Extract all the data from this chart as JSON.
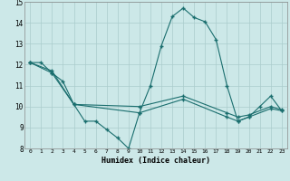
{
  "xlabel": "Humidex (Indice chaleur)",
  "background_color": "#cce8e8",
  "grid_color": "#aacccc",
  "line_color": "#1a6e6e",
  "xlim": [
    -0.5,
    23.5
  ],
  "ylim": [
    8,
    15
  ],
  "xticks": [
    0,
    1,
    2,
    3,
    4,
    5,
    6,
    7,
    8,
    9,
    10,
    11,
    12,
    13,
    14,
    15,
    16,
    17,
    18,
    19,
    20,
    21,
    22,
    23
  ],
  "yticks": [
    8,
    9,
    10,
    11,
    12,
    13,
    14,
    15
  ],
  "line1_x": [
    0,
    1,
    2,
    3,
    4,
    5,
    6,
    7,
    8,
    9,
    10,
    11,
    12,
    13,
    14,
    15,
    16,
    17,
    18,
    19,
    20,
    21,
    22,
    23
  ],
  "line1_y": [
    12.1,
    12.1,
    11.6,
    11.2,
    10.1,
    9.3,
    9.3,
    8.9,
    8.5,
    8.0,
    9.7,
    11.0,
    12.9,
    14.3,
    14.7,
    14.25,
    14.05,
    13.2,
    11.0,
    9.3,
    9.5,
    10.0,
    10.5,
    9.8
  ],
  "line2_x": [
    0,
    2,
    4,
    10,
    14,
    18,
    19,
    20,
    22,
    23
  ],
  "line2_y": [
    12.1,
    11.6,
    10.1,
    9.7,
    10.35,
    9.5,
    9.3,
    9.5,
    9.9,
    9.8
  ],
  "line3_x": [
    0,
    2,
    4,
    10,
    14,
    18,
    19,
    20,
    22,
    23
  ],
  "line3_y": [
    12.1,
    11.7,
    10.1,
    10.0,
    10.5,
    9.7,
    9.5,
    9.6,
    10.0,
    9.85
  ]
}
